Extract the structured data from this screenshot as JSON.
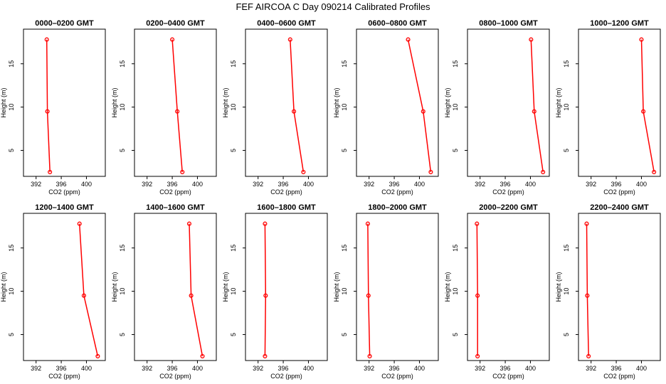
{
  "figure_title": "FEF AIRCOA C  Day 090214  Calibrated Profiles",
  "colors": {
    "series": "#ff0000",
    "axis": "#000000"
  },
  "chart_data": [
    {
      "type": "line",
      "title": "0000–0200 GMT",
      "xlabel": "CO2 (ppm)",
      "ylabel": "Height (m)",
      "xlim": [
        390,
        403
      ],
      "ylim": [
        2,
        19
      ],
      "xticks": [
        392,
        396,
        400
      ],
      "yticks": [
        5,
        10,
        15
      ],
      "grid": false,
      "series": [
        {
          "x": [
            393.7,
            393.8,
            394.2
          ],
          "y": [
            17.8,
            9.5,
            2.5
          ]
        }
      ]
    },
    {
      "type": "line",
      "title": "0200–0400 GMT",
      "xlabel": "CO2 (ppm)",
      "ylabel": "Height (m)",
      "xlim": [
        390,
        403
      ],
      "ylim": [
        2,
        19
      ],
      "xticks": [
        392,
        396,
        400
      ],
      "yticks": [
        5,
        10,
        15
      ],
      "grid": false,
      "series": [
        {
          "x": [
            396.0,
            396.8,
            397.6
          ],
          "y": [
            17.8,
            9.5,
            2.5
          ]
        }
      ]
    },
    {
      "type": "line",
      "title": "0400–0600 GMT",
      "xlabel": "CO2 (ppm)",
      "ylabel": "Height (m)",
      "xlim": [
        390,
        403
      ],
      "ylim": [
        2,
        19
      ],
      "xticks": [
        392,
        396,
        400
      ],
      "yticks": [
        5,
        10,
        15
      ],
      "grid": false,
      "series": [
        {
          "x": [
            397.1,
            397.7,
            399.2
          ],
          "y": [
            17.8,
            9.5,
            2.5
          ]
        }
      ]
    },
    {
      "type": "line",
      "title": "0600–0800 GMT",
      "xlabel": "CO2 (ppm)",
      "ylabel": "Height (m)",
      "xlim": [
        390,
        403
      ],
      "ylim": [
        2,
        19
      ],
      "xticks": [
        392,
        396,
        400
      ],
      "yticks": [
        5,
        10,
        15
      ],
      "grid": false,
      "series": [
        {
          "x": [
            398.2,
            400.6,
            401.8
          ],
          "y": [
            17.8,
            9.5,
            2.5
          ]
        }
      ]
    },
    {
      "type": "line",
      "title": "0800–1000 GMT",
      "xlabel": "CO2 (ppm)",
      "ylabel": "Height (m)",
      "xlim": [
        390,
        403
      ],
      "ylim": [
        2,
        19
      ],
      "xticks": [
        392,
        396,
        400
      ],
      "yticks": [
        5,
        10,
        15
      ],
      "grid": false,
      "series": [
        {
          "x": [
            400.1,
            400.6,
            402.0
          ],
          "y": [
            17.8,
            9.5,
            2.5
          ]
        }
      ]
    },
    {
      "type": "line",
      "title": "1000–1200 GMT",
      "xlabel": "CO2 (ppm)",
      "ylabel": "Height (m)",
      "xlim": [
        390,
        403
      ],
      "ylim": [
        2,
        19
      ],
      "xticks": [
        392,
        396,
        400
      ],
      "yticks": [
        5,
        10,
        15
      ],
      "grid": false,
      "series": [
        {
          "x": [
            400.0,
            400.3,
            402.0
          ],
          "y": [
            17.8,
            9.5,
            2.5
          ]
        }
      ]
    },
    {
      "type": "line",
      "title": "1200–1400 GMT",
      "xlabel": "CO2 (ppm)",
      "ylabel": "Height (m)",
      "xlim": [
        390,
        403
      ],
      "ylim": [
        2,
        19
      ],
      "xticks": [
        392,
        396,
        400
      ],
      "yticks": [
        5,
        10,
        15
      ],
      "grid": false,
      "series": [
        {
          "x": [
            398.9,
            399.6,
            401.8
          ],
          "y": [
            17.8,
            9.5,
            2.5
          ]
        }
      ]
    },
    {
      "type": "line",
      "title": "1400–1600 GMT",
      "xlabel": "CO2 (ppm)",
      "ylabel": "Height (m)",
      "xlim": [
        390,
        403
      ],
      "ylim": [
        2,
        19
      ],
      "xticks": [
        392,
        396,
        400
      ],
      "yticks": [
        5,
        10,
        15
      ],
      "grid": false,
      "series": [
        {
          "x": [
            398.7,
            399.0,
            400.8
          ],
          "y": [
            17.8,
            9.5,
            2.5
          ]
        }
      ]
    },
    {
      "type": "line",
      "title": "1600–1800 GMT",
      "xlabel": "CO2 (ppm)",
      "ylabel": "Height (m)",
      "xlim": [
        390,
        403
      ],
      "ylim": [
        2,
        19
      ],
      "xticks": [
        392,
        396,
        400
      ],
      "yticks": [
        5,
        10,
        15
      ],
      "grid": false,
      "series": [
        {
          "x": [
            393.1,
            393.2,
            393.1
          ],
          "y": [
            17.8,
            9.5,
            2.5
          ]
        }
      ]
    },
    {
      "type": "line",
      "title": "1800–2000 GMT",
      "xlabel": "CO2 (ppm)",
      "ylabel": "Height (m)",
      "xlim": [
        390,
        403
      ],
      "ylim": [
        2,
        19
      ],
      "xticks": [
        392,
        396,
        400
      ],
      "yticks": [
        5,
        10,
        15
      ],
      "grid": false,
      "series": [
        {
          "x": [
            391.8,
            391.9,
            392.1
          ],
          "y": [
            17.8,
            9.5,
            2.5
          ]
        }
      ]
    },
    {
      "type": "line",
      "title": "2000–2200 GMT",
      "xlabel": "CO2 (ppm)",
      "ylabel": "Height (m)",
      "xlim": [
        390,
        403
      ],
      "ylim": [
        2,
        19
      ],
      "xticks": [
        392,
        396,
        400
      ],
      "yticks": [
        5,
        10,
        15
      ],
      "grid": false,
      "series": [
        {
          "x": [
            391.5,
            391.6,
            391.6
          ],
          "y": [
            17.8,
            9.5,
            2.5
          ]
        }
      ]
    },
    {
      "type": "line",
      "title": "2200–2400 GMT",
      "xlabel": "CO2 (ppm)",
      "ylabel": "Height (m)",
      "xlim": [
        390,
        403
      ],
      "ylim": [
        2,
        19
      ],
      "xticks": [
        392,
        396,
        400
      ],
      "yticks": [
        5,
        10,
        15
      ],
      "grid": false,
      "series": [
        {
          "x": [
            391.3,
            391.4,
            391.6
          ],
          "y": [
            17.8,
            9.5,
            2.5
          ]
        }
      ]
    }
  ]
}
